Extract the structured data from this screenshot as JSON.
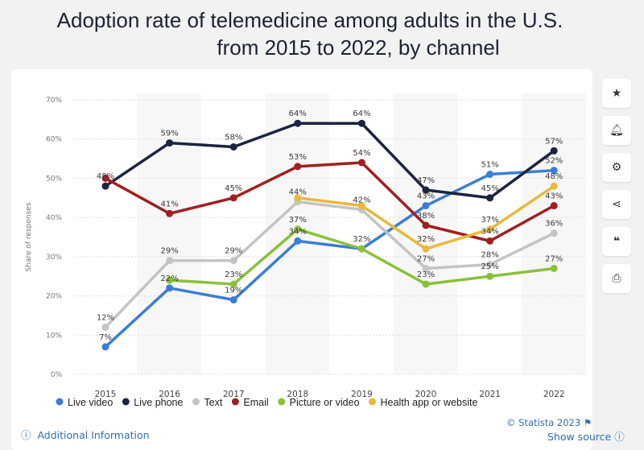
{
  "title_lines": [
    "Adoption rate of telemedicine among adults in the U.S.",
    "from 2015 to 2022, by channel"
  ],
  "chart_data": {
    "type": "line",
    "title": "Adoption rate of telemedicine among adults in the U.S. from 2015 to 2022, by channel",
    "ylabel": "Share of responses",
    "ylim": [
      0,
      70
    ],
    "yticks": [
      "0%",
      "10%",
      "20%",
      "30%",
      "40%",
      "50%",
      "60%",
      "70%"
    ],
    "categories": [
      "2015",
      "2016",
      "2017",
      "2018",
      "2019",
      "2020",
      "2021",
      "2022"
    ],
    "grid": true,
    "legend_position": "bottom",
    "series": [
      {
        "name": "Live video",
        "color": "#3b7dd8",
        "values": [
          7,
          22,
          19,
          34,
          32,
          43,
          51,
          52
        ]
      },
      {
        "name": "Live phone",
        "color": "#1b2440",
        "values": [
          48,
          59,
          58,
          64,
          64,
          47,
          45,
          57
        ]
      },
      {
        "name": "Text",
        "color": "#c4c4c4",
        "values": [
          12,
          29,
          29,
          44,
          42,
          27,
          28,
          36
        ]
      },
      {
        "name": "Email",
        "color": "#a11f1f",
        "values": [
          50,
          41,
          45,
          53,
          54,
          38,
          34,
          43
        ]
      },
      {
        "name": "Picture or video",
        "color": "#8ac13a",
        "values": [
          null,
          24,
          23,
          37,
          32,
          23,
          25,
          27
        ]
      },
      {
        "name": "Health app or website",
        "color": "#e8b93a",
        "values": [
          null,
          null,
          null,
          45,
          43,
          32,
          37,
          48
        ]
      }
    ],
    "data_labels": [
      {
        "category": "2015",
        "text": [
          "48%",
          "12%",
          "7%"
        ]
      },
      {
        "category": "2016",
        "text": [
          "59%",
          "41%",
          "29%",
          "22%"
        ]
      },
      {
        "category": "2017",
        "text": [
          "58%",
          "45%",
          "29%",
          "23%",
          "19%"
        ]
      },
      {
        "category": "2018",
        "text": [
          "64%",
          "53%",
          "44%",
          "37%",
          "34%"
        ]
      },
      {
        "category": "2019",
        "text": [
          "64%",
          "54%",
          "42%",
          "32%"
        ]
      },
      {
        "category": "2020",
        "text": [
          "47%",
          "43%",
          "38%",
          "32%",
          "27%",
          "23%"
        ]
      },
      {
        "category": "2021",
        "text": [
          "51%",
          "45%",
          "37%",
          "34%",
          "28%",
          "25%"
        ]
      },
      {
        "category": "2022",
        "text": [
          "57%",
          "52%",
          "48%",
          "43%",
          "36%",
          "27%"
        ]
      }
    ]
  },
  "sidebar": {
    "icons": [
      "star-icon",
      "bell-icon",
      "gear-icon",
      "share-icon",
      "quote-icon",
      "print-icon"
    ]
  },
  "footer": {
    "credit": "© Statista 2023",
    "additional_info": "Additional Information",
    "show_source": "Show source"
  }
}
